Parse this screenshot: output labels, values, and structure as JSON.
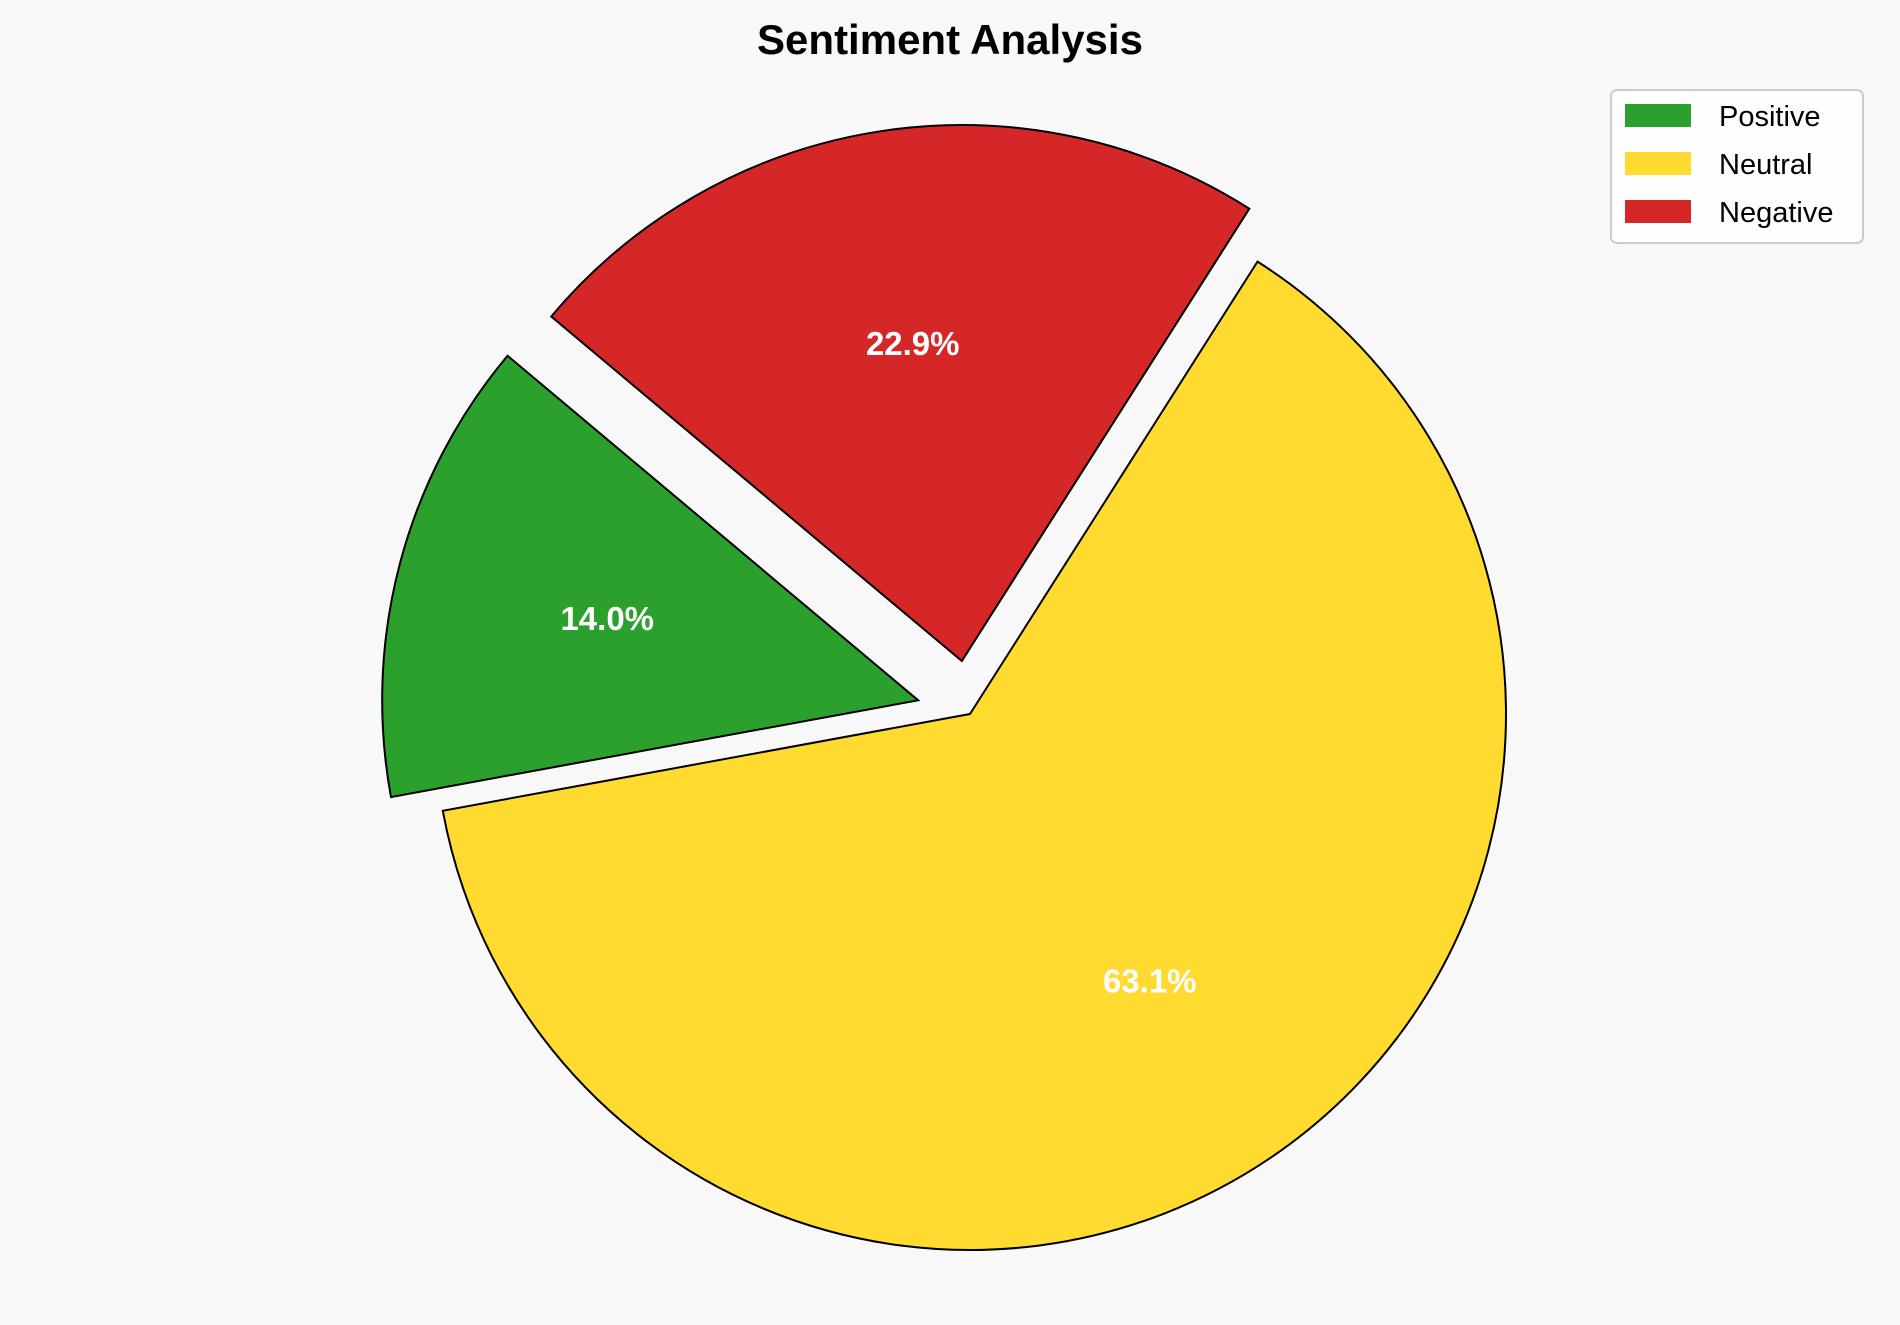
{
  "chart_data": {
    "type": "pie",
    "title": "Sentiment Analysis",
    "categories": [
      "Positive",
      "Neutral",
      "Negative"
    ],
    "values": [
      14.0,
      63.1,
      22.9
    ],
    "labels": [
      "14.0%",
      "63.1%",
      "22.9%"
    ],
    "colors": [
      "#2ca02c",
      "#ffda2f",
      "#d62728"
    ],
    "explode": [
      0.1,
      0,
      0.1
    ],
    "start_angle": 140,
    "direction": "counterclockwise",
    "edge_color": "#000000",
    "legend": {
      "position": "top-right",
      "entries": [
        "Positive",
        "Neutral",
        "Negative"
      ]
    },
    "background": "#f8f8f8"
  }
}
